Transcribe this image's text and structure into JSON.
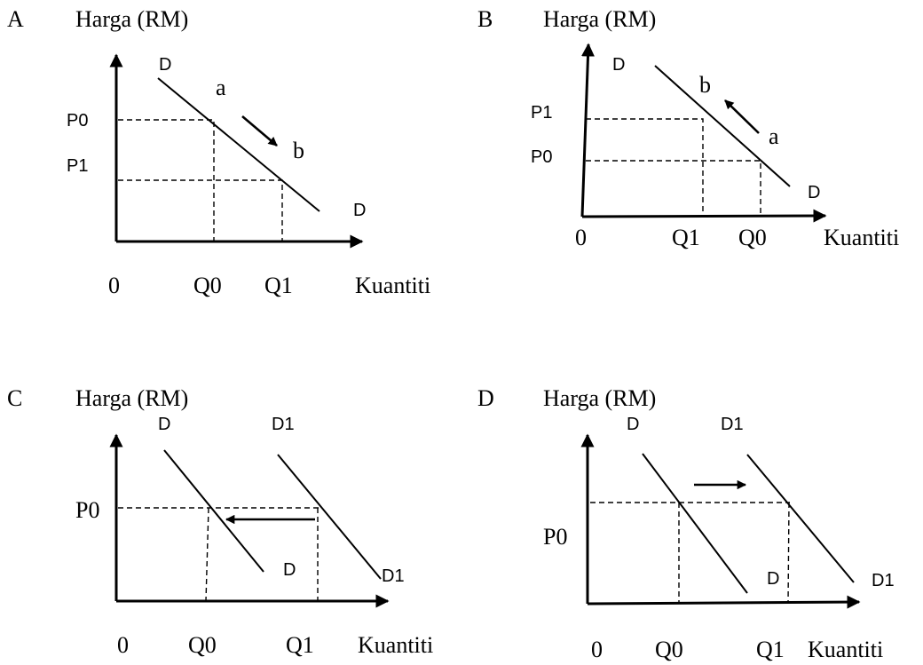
{
  "panels": [
    {
      "letter": "A",
      "ylabel": "Harga (RM)",
      "xlabel": "Kuantiti",
      "origin": "0",
      "price_labels": [
        "P0",
        "P1"
      ],
      "qty_labels": [
        "Q0",
        "Q1"
      ],
      "curve_labels": [
        "D",
        "D"
      ],
      "point_labels": [
        "a",
        "b"
      ]
    },
    {
      "letter": "B",
      "ylabel": "Harga (RM)",
      "xlabel": "Kuantiti",
      "origin": "0",
      "price_labels": [
        "P1",
        "P0"
      ],
      "qty_labels": [
        "Q1",
        "Q0"
      ],
      "curve_labels": [
        "D",
        "D"
      ],
      "point_labels": [
        "b",
        "a"
      ]
    },
    {
      "letter": "C",
      "ylabel": "Harga (RM)",
      "xlabel": "Kuantiti",
      "origin": "0",
      "price_labels": [
        "P0"
      ],
      "qty_labels": [
        "Q0",
        "Q1"
      ],
      "curve_labels": [
        "D",
        "D1",
        "D",
        "D1"
      ]
    },
    {
      "letter": "D",
      "ylabel": "Harga (RM)",
      "xlabel": "Kuantiti",
      "origin": "0",
      "price_labels": [
        "P0"
      ],
      "qty_labels": [
        "Q0",
        "Q1"
      ],
      "curve_labels": [
        "D",
        "D1",
        "D",
        "D1"
      ]
    }
  ]
}
